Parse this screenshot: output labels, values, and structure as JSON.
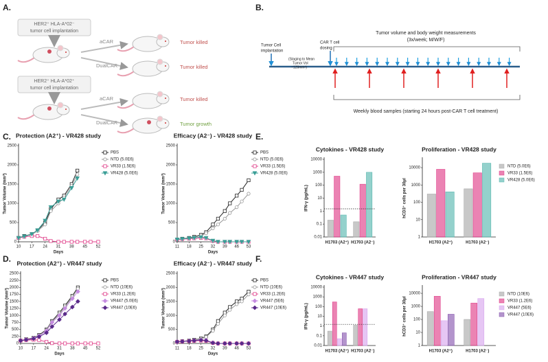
{
  "panel_labels": [
    "A.",
    "B.",
    "C.",
    "D.",
    "E.",
    "F."
  ],
  "diagram_a": {
    "groups": [
      {
        "implant": [
          "HER2⁺ HLA-A*02⁻",
          "tumor cell implantation"
        ],
        "arms": [
          {
            "car": "aCAR",
            "outcome": "Tumor killed"
          },
          {
            "car": "DualCAR",
            "outcome": "Tumor killed"
          }
        ]
      },
      {
        "implant": [
          "HER2⁺ HLA-A*02⁺",
          "tumor cell implantation"
        ],
        "arms": [
          {
            "car": "aCAR",
            "outcome": "Tumor killed"
          },
          {
            "car": "DualCAR",
            "outcome": "Tumor growth"
          }
        ]
      }
    ]
  },
  "timeline_b": {
    "implantation": [
      "Tumor Cell",
      "implantation"
    ],
    "staging": [
      "(Staging to Mean",
      "Tumor Vol",
      "~120mm³)"
    ],
    "dosing": [
      "CAR T cell",
      "dosing"
    ],
    "measurements": "Tumor volume and body weight measurements",
    "frequency": "(3x/week; M/W/F)",
    "blood": "Weekly blood samples (starting 24 hours post-CAR T cell treatment)"
  },
  "chart_data": [
    {
      "type": "line",
      "title": "Protection (A2⁺) - VR428 study",
      "x_label": "Days",
      "y_label": "Tumor Volume (mm³)",
      "x": [
        10,
        13,
        17,
        20,
        24,
        27,
        31,
        34,
        38,
        41,
        45,
        48,
        52
      ],
      "xlim": [
        10,
        52
      ],
      "xticks": [
        10,
        17,
        24,
        31,
        38,
        45,
        52
      ],
      "ylim": [
        0,
        2500
      ],
      "yticks": [
        0,
        500,
        1000,
        1500,
        2000,
        2500
      ],
      "legend": true,
      "series": [
        {
          "name": "PBS",
          "color": "#222222",
          "marker": "square",
          "filled": false,
          "values": [
            100,
            150,
            200,
            300,
            500,
            850,
            1100,
            1200,
            1500,
            1850,
            null,
            null,
            null
          ]
        },
        {
          "name": "NTD (5.0E6)",
          "color": "#999999",
          "marker": "circle",
          "filled": false,
          "values": [
            100,
            140,
            190,
            280,
            450,
            800,
            1000,
            1150,
            1450,
            1750,
            null,
            null,
            null
          ]
        },
        {
          "name": "VR33 (1.5E6)",
          "color": "#e0408a",
          "marker": "square",
          "filled": false,
          "values": [
            100,
            130,
            150,
            150,
            80,
            20,
            0,
            0,
            0,
            0,
            0,
            0,
            0
          ]
        },
        {
          "name": "VR428 (5.0E6)",
          "color": "#3a9e96",
          "marker": "triangle",
          "filled": true,
          "values": [
            100,
            140,
            200,
            300,
            550,
            900,
            1050,
            1100,
            1400,
            1650,
            null,
            null,
            null
          ]
        }
      ]
    },
    {
      "type": "line",
      "title": "Efficacy (A2⁻) - VR428 study",
      "x_label": "Days",
      "y_label": "Tumor Volume (mm³)",
      "x": [
        11,
        14,
        18,
        21,
        25,
        28,
        32,
        35,
        39,
        42,
        46,
        49,
        53
      ],
      "xlim": [
        11,
        53
      ],
      "xticks": [
        11,
        18,
        25,
        32,
        39,
        46,
        53
      ],
      "ylim": [
        0,
        2500
      ],
      "yticks": [
        0,
        500,
        1000,
        1500,
        2000,
        2500
      ],
      "legend": true,
      "series": [
        {
          "name": "PBS",
          "color": "#222222",
          "marker": "square",
          "filled": false,
          "values": [
            60,
            80,
            100,
            130,
            180,
            250,
            450,
            600,
            800,
            1000,
            1200,
            1350,
            1600
          ]
        },
        {
          "name": "NTD (5.0E6)",
          "color": "#999999",
          "marker": "circle",
          "filled": false,
          "values": [
            60,
            75,
            95,
            120,
            160,
            220,
            350,
            450,
            600,
            750,
            900,
            1050,
            1250
          ]
        },
        {
          "name": "VR33 (1.5E6)",
          "color": "#e0408a",
          "marker": "square",
          "filled": false,
          "values": [
            60,
            70,
            80,
            90,
            100,
            90,
            20,
            0,
            0,
            0,
            0,
            0,
            0
          ]
        },
        {
          "name": "VR428 (5.0E6)",
          "color": "#3a9e96",
          "marker": "triangle",
          "filled": true,
          "values": [
            60,
            75,
            90,
            100,
            120,
            100,
            30,
            0,
            0,
            0,
            0,
            0,
            0
          ]
        }
      ]
    },
    {
      "type": "bar",
      "title": "Cytokines - VR428 study",
      "y_label": "IFN-γ (pg/mL)",
      "log": true,
      "categories": [
        "H1703 (A2⁺)",
        "H1703 (A2⁻)"
      ],
      "ylim": [
        0.01,
        10000
      ],
      "yticks": [
        0.01,
        0.1,
        1,
        10,
        100,
        1000,
        10000
      ],
      "threshold": 1.5,
      "legend": false,
      "series": [
        {
          "name": "NTD (5.0E6)",
          "color": "#aaaaaa",
          "values": [
            0.2,
            0.15
          ]
        },
        {
          "name": "VR33 (1.5E6)",
          "color": "#e0408a",
          "values": [
            500,
            120
          ]
        },
        {
          "name": "VR428 (5.0E6)",
          "color": "#5bb8b0",
          "values": [
            0.5,
            1000
          ]
        }
      ]
    },
    {
      "type": "bar",
      "title": "Proliferation - VR428 study",
      "y_label": "hCD3⁺ cells per 30μl",
      "log": true,
      "categories": [
        "H1703 (A2⁺)",
        "H1703 (A2⁻)"
      ],
      "ylim": [
        1,
        30000
      ],
      "yticks": [
        1,
        10,
        100,
        1000,
        10000
      ],
      "legend": true,
      "series": [
        {
          "name": "NTD (5.0E6)",
          "color": "#aaaaaa",
          "values": [
            300,
            600
          ]
        },
        {
          "name": "VR33 (1.5E6)",
          "color": "#e0408a",
          "values": [
            8000,
            5000
          ]
        },
        {
          "name": "VR428 (5.0E6)",
          "color": "#5bb8b0",
          "values": [
            400,
            18000
          ]
        }
      ]
    },
    {
      "type": "line",
      "title": "Protection (A2⁺) - VR447 study",
      "x_label": "Days",
      "y_label": "Tumor Volume (mm³)",
      "x": [
        10,
        13,
        17,
        20,
        24,
        27,
        31,
        34,
        38,
        41,
        45,
        48,
        52
      ],
      "xlim": [
        10,
        52
      ],
      "xticks": [
        10,
        17,
        24,
        31,
        38,
        45,
        52
      ],
      "ylim": [
        0,
        2500
      ],
      "yticks": [
        0,
        250,
        500,
        750,
        1000,
        1250,
        1500,
        1750,
        2000,
        2250,
        2500
      ],
      "legend": true,
      "series": [
        {
          "name": "PBS",
          "color": "#222222",
          "marker": "square",
          "filled": false,
          "values": [
            100,
            150,
            200,
            300,
            500,
            800,
            1100,
            1350,
            1700,
            2000,
            null,
            null,
            null
          ]
        },
        {
          "name": "NTD (10E6)",
          "color": "#999999",
          "marker": "circle",
          "filled": false,
          "values": [
            100,
            145,
            190,
            280,
            480,
            780,
            1050,
            1300,
            1650,
            1950,
            null,
            null,
            null
          ]
        },
        {
          "name": "VR33 (1.2E6)",
          "color": "#e0408a",
          "marker": "square",
          "filled": false,
          "values": [
            100,
            120,
            130,
            120,
            60,
            10,
            0,
            0,
            0,
            0,
            0,
            0,
            0
          ]
        },
        {
          "name": "VR447 (5.0E6)",
          "color": "#c58be0",
          "marker": "diamond",
          "filled": true,
          "values": [
            100,
            140,
            190,
            270,
            450,
            750,
            1000,
            1250,
            1600,
            1850,
            null,
            null,
            null
          ]
        },
        {
          "name": "VR447 (10E6)",
          "color": "#5a2a8a",
          "marker": "diamond",
          "filled": true,
          "values": [
            100,
            130,
            170,
            240,
            380,
            600,
            850,
            1050,
            1300,
            1500,
            null,
            null,
            null
          ]
        }
      ]
    },
    {
      "type": "line",
      "title": "Efficacy (A2⁻) - VR447 study",
      "x_label": "Days",
      "y_label": "Tumor Volume (mm³)",
      "x": [
        11,
        14,
        18,
        21,
        25,
        28,
        32,
        35,
        39,
        42,
        46,
        49,
        53
      ],
      "xlim": [
        11,
        53
      ],
      "xticks": [
        11,
        18,
        25,
        32,
        39,
        46,
        53
      ],
      "ylim": [
        0,
        2500
      ],
      "yticks": [
        0,
        500,
        1000,
        1500,
        2000,
        2500
      ],
      "legend": true,
      "series": [
        {
          "name": "PBS",
          "color": "#222222",
          "marker": "square",
          "filled": false,
          "values": [
            60,
            80,
            100,
            130,
            180,
            250,
            500,
            800,
            1100,
            1300,
            1500,
            1600,
            1850
          ]
        },
        {
          "name": "NTD (10E6)",
          "color": "#999999",
          "marker": "circle",
          "filled": false,
          "values": [
            60,
            75,
            95,
            120,
            170,
            230,
            450,
            700,
            1000,
            1200,
            1400,
            1500,
            1750
          ]
        },
        {
          "name": "VR33 (1.2E6)",
          "color": "#e0408a",
          "marker": "square",
          "filled": false,
          "values": [
            60,
            70,
            80,
            90,
            100,
            90,
            20,
            0,
            0,
            0,
            0,
            0,
            0
          ]
        },
        {
          "name": "VR447 (5E6)",
          "color": "#c58be0",
          "marker": "diamond",
          "filled": true,
          "values": [
            60,
            75,
            90,
            110,
            130,
            120,
            30,
            0,
            0,
            0,
            0,
            0,
            0
          ]
        },
        {
          "name": "VR447 (10E6)",
          "color": "#5a2a8a",
          "marker": "diamond",
          "filled": true,
          "values": [
            60,
            70,
            85,
            100,
            120,
            100,
            20,
            0,
            0,
            0,
            0,
            0,
            0
          ]
        }
      ]
    },
    {
      "type": "bar",
      "title": "Cytokines - VR447 study",
      "y_label": "IFN-γ (pg/mL)",
      "log": true,
      "categories": [
        "H1703 (A2⁺)",
        "H1703 (A2⁻)"
      ],
      "ylim": [
        0.01,
        10000
      ],
      "yticks": [
        0.01,
        0.1,
        1,
        10,
        100,
        1000,
        10000
      ],
      "threshold": 1.5,
      "legend": false,
      "series": [
        {
          "name": "NTD (10E6)",
          "color": "#aaaaaa",
          "values": [
            0.3,
            1.2
          ]
        },
        {
          "name": "VR33 (1.2E6)",
          "color": "#e0408a",
          "values": [
            300,
            60
          ]
        },
        {
          "name": "VR447 (5E6)",
          "color": "#d8a8ee",
          "values": [
            0.05,
            60
          ]
        },
        {
          "name": "VR447 (10E6)",
          "color": "#8a5ab0",
          "values": [
            0.2,
            null
          ]
        }
      ]
    },
    {
      "type": "bar",
      "title": "Proliferation - VR447 study",
      "y_label": "hCD3⁺ cells per 30μl",
      "log": true,
      "categories": [
        "H1703 (A2⁺)",
        "H1703 (A2⁻)"
      ],
      "ylim": [
        1,
        30000
      ],
      "yticks": [
        1,
        10,
        100,
        1000,
        10000
      ],
      "legend": true,
      "series": [
        {
          "name": "NTD (10E6)",
          "color": "#aaaaaa",
          "values": [
            400,
            100
          ]
        },
        {
          "name": "VR33 (1.2E6)",
          "color": "#e0408a",
          "values": [
            6000,
            1800
          ]
        },
        {
          "name": "VR447 (5E6)",
          "color": "#d8a8ee",
          "values": [
            80,
            4000
          ]
        },
        {
          "name": "VR447 (10E6)",
          "color": "#8a5ab0",
          "values": [
            250,
            null
          ]
        }
      ]
    }
  ]
}
